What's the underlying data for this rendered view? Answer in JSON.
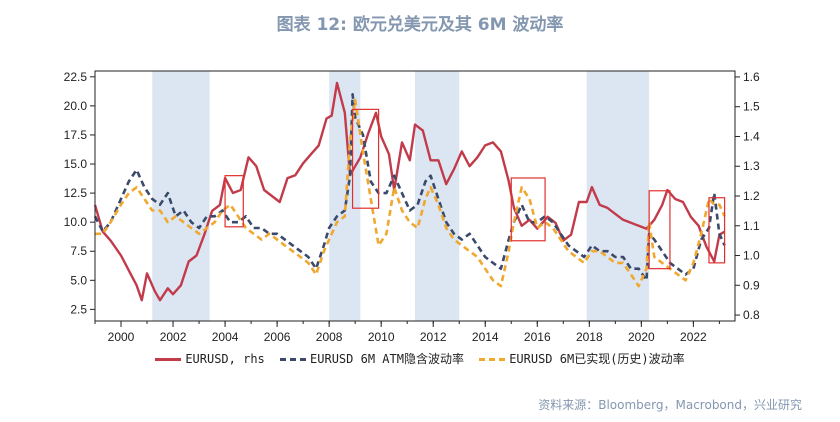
{
  "title": "图表 12: 欧元兑美元及其 6M 波动率",
  "source": "资料来源：Bloomberg，Macrobond，兴业研究",
  "colors": {
    "rate": "#c23b4b",
    "atm": "#3b4a6b",
    "realized": "#f0a830",
    "shade": "#dce6f2",
    "box": "#e0302e"
  },
  "chart_data": {
    "type": "line",
    "title": "图表 12: 欧元兑美元及其 6M 波动率",
    "x_range": [
      1999,
      2023.6
    ],
    "x_ticks": [
      "2000",
      "2002",
      "2004",
      "2006",
      "2008",
      "2010",
      "2012",
      "2014",
      "2016",
      "2018",
      "2020",
      "2022"
    ],
    "y_left_range": [
      1.5,
      23
    ],
    "y_left_ticks": [
      "2.5",
      "5.0",
      "7.5",
      "10.0",
      "12.5",
      "15.0",
      "17.5",
      "20.0",
      "22.5"
    ],
    "y_right_range": [
      0.78,
      1.62
    ],
    "y_right_ticks": [
      "0.8",
      "0.9",
      "1.0",
      "1.1",
      "1.2",
      "1.3",
      "1.4",
      "1.5",
      "1.6"
    ],
    "shaded_periods": [
      [
        2001.2,
        2003.4
      ],
      [
        2008.0,
        2009.2
      ],
      [
        2011.3,
        2013.0
      ],
      [
        2017.9,
        2020.3
      ]
    ],
    "highlight_boxes": [
      {
        "x": [
          2004.0,
          2004.7
        ],
        "y": [
          9.6,
          14.0
        ]
      },
      {
        "x": [
          2008.9,
          2009.9
        ],
        "y": [
          11.2,
          19.7
        ]
      },
      {
        "x": [
          2015.0,
          2016.3
        ],
        "y": [
          8.4,
          13.8
        ]
      },
      {
        "x": [
          2020.3,
          2021.1
        ],
        "y": [
          6.0,
          12.7
        ]
      },
      {
        "x": [
          2022.6,
          2023.2
        ],
        "y": [
          6.5,
          12.1
        ]
      }
    ],
    "series": [
      {
        "name": "EURUSD, rhs",
        "axis": "right",
        "x": [
          1999.0,
          1999.3,
          1999.6,
          2000.0,
          2000.3,
          2000.6,
          2000.8,
          2001.0,
          2001.3,
          2001.5,
          2001.8,
          2002.0,
          2002.3,
          2002.6,
          2002.9,
          2003.2,
          2003.5,
          2003.8,
          2004.0,
          2004.3,
          2004.6,
          2004.9,
          2005.2,
          2005.5,
          2005.8,
          2006.1,
          2006.4,
          2006.7,
          2007.0,
          2007.3,
          2007.6,
          2007.9,
          2008.1,
          2008.3,
          2008.6,
          2008.8,
          2009.0,
          2009.2,
          2009.5,
          2009.8,
          2010.0,
          2010.3,
          2010.5,
          2010.8,
          2011.1,
          2011.3,
          2011.6,
          2011.9,
          2012.2,
          2012.5,
          2012.8,
          2013.1,
          2013.4,
          2013.7,
          2014.0,
          2014.3,
          2014.6,
          2014.9,
          2015.1,
          2015.4,
          2015.7,
          2016.0,
          2016.4,
          2016.7,
          2017.0,
          2017.3,
          2017.6,
          2017.9,
          2018.1,
          2018.4,
          2018.7,
          2019.0,
          2019.3,
          2019.6,
          2019.9,
          2020.2,
          2020.5,
          2020.8,
          2021.0,
          2021.3,
          2021.6,
          2021.9,
          2022.2,
          2022.5,
          2022.8,
          2023.0,
          2023.2
        ],
        "values": [
          1.17,
          1.08,
          1.05,
          1.0,
          0.95,
          0.9,
          0.85,
          0.94,
          0.88,
          0.85,
          0.89,
          0.87,
          0.9,
          0.98,
          1.0,
          1.07,
          1.15,
          1.17,
          1.26,
          1.21,
          1.22,
          1.33,
          1.3,
          1.22,
          1.2,
          1.18,
          1.26,
          1.27,
          1.31,
          1.34,
          1.37,
          1.46,
          1.47,
          1.58,
          1.48,
          1.27,
          1.3,
          1.33,
          1.41,
          1.48,
          1.4,
          1.34,
          1.22,
          1.38,
          1.32,
          1.44,
          1.42,
          1.32,
          1.32,
          1.24,
          1.29,
          1.35,
          1.3,
          1.33,
          1.37,
          1.38,
          1.35,
          1.25,
          1.16,
          1.1,
          1.12,
          1.09,
          1.13,
          1.11,
          1.05,
          1.07,
          1.18,
          1.18,
          1.23,
          1.17,
          1.16,
          1.14,
          1.12,
          1.11,
          1.1,
          1.09,
          1.12,
          1.17,
          1.22,
          1.19,
          1.18,
          1.13,
          1.1,
          1.03,
          0.98,
          1.07,
          1.08
        ]
      },
      {
        "name": "EURUSD 6M ATM隐含波动率",
        "axis": "left",
        "x": [
          1999.0,
          1999.3,
          1999.6,
          2000.0,
          2000.3,
          2000.6,
          2000.9,
          2001.2,
          2001.5,
          2001.8,
          2002.1,
          2002.4,
          2002.7,
          2003.0,
          2003.3,
          2003.6,
          2003.9,
          2004.2,
          2004.5,
          2004.8,
          2005.1,
          2005.4,
          2005.7,
          2006.0,
          2006.3,
          2006.6,
          2006.9,
          2007.2,
          2007.5,
          2007.8,
          2008.0,
          2008.3,
          2008.6,
          2008.8,
          2008.9,
          2009.0,
          2009.3,
          2009.6,
          2009.9,
          2010.2,
          2010.5,
          2010.8,
          2011.1,
          2011.4,
          2011.7,
          2011.9,
          2012.2,
          2012.5,
          2012.8,
          2013.1,
          2013.4,
          2013.7,
          2014.0,
          2014.3,
          2014.6,
          2014.9,
          2015.1,
          2015.4,
          2015.7,
          2016.0,
          2016.3,
          2016.6,
          2016.9,
          2017.2,
          2017.5,
          2017.8,
          2018.1,
          2018.4,
          2018.7,
          2019.0,
          2019.3,
          2019.6,
          2019.9,
          2020.2,
          2020.3,
          2020.5,
          2020.8,
          2021.1,
          2021.4,
          2021.7,
          2022.0,
          2022.3,
          2022.6,
          2022.8,
          2023.0,
          2023.2
        ],
        "values": [
          10.5,
          9.2,
          10.0,
          12.0,
          13.5,
          14.5,
          13.0,
          12.0,
          11.5,
          12.5,
          10.5,
          11.0,
          10.0,
          9.5,
          10.5,
          10.5,
          11.0,
          10.0,
          10.0,
          10.5,
          9.5,
          9.5,
          9.0,
          9.0,
          8.5,
          8.0,
          7.5,
          7.0,
          6.0,
          8.0,
          9.5,
          10.5,
          11.0,
          14.0,
          21.0,
          19.0,
          17.5,
          13.5,
          12.5,
          12.5,
          14.0,
          12.5,
          11.0,
          11.5,
          13.5,
          14.0,
          12.0,
          10.0,
          9.0,
          8.5,
          9.0,
          8.0,
          7.0,
          6.5,
          6.0,
          8.5,
          10.0,
          11.5,
          10.0,
          10.0,
          10.5,
          10.0,
          9.0,
          8.0,
          7.5,
          7.0,
          8.0,
          7.5,
          7.5,
          7.0,
          7.0,
          6.0,
          6.0,
          5.0,
          9.0,
          8.5,
          7.5,
          6.5,
          6.0,
          5.5,
          6.0,
          8.5,
          9.5,
          12.5,
          9.0,
          8.0
        ]
      },
      {
        "name": "EURUSD 6M已实现(历史)波动率",
        "axis": "left",
        "x": [
          1999.0,
          1999.3,
          1999.6,
          2000.0,
          2000.3,
          2000.6,
          2000.9,
          2001.2,
          2001.5,
          2001.8,
          2002.1,
          2002.4,
          2002.7,
          2003.0,
          2003.3,
          2003.6,
          2003.9,
          2004.2,
          2004.5,
          2004.8,
          2005.1,
          2005.4,
          2005.7,
          2006.0,
          2006.3,
          2006.6,
          2006.9,
          2007.2,
          2007.5,
          2007.8,
          2008.0,
          2008.3,
          2008.6,
          2008.8,
          2009.0,
          2009.3,
          2009.6,
          2009.9,
          2010.2,
          2010.5,
          2010.8,
          2011.1,
          2011.4,
          2011.7,
          2011.9,
          2012.2,
          2012.5,
          2012.8,
          2013.1,
          2013.4,
          2013.7,
          2014.0,
          2014.3,
          2014.6,
          2014.9,
          2015.1,
          2015.4,
          2015.7,
          2016.0,
          2016.3,
          2016.6,
          2016.9,
          2017.2,
          2017.5,
          2017.8,
          2018.1,
          2018.4,
          2018.7,
          2019.0,
          2019.3,
          2019.6,
          2019.9,
          2020.2,
          2020.3,
          2020.5,
          2020.8,
          2021.1,
          2021.4,
          2021.7,
          2022.0,
          2022.3,
          2022.6,
          2022.8,
          2023.0,
          2023.2
        ],
        "values": [
          9.0,
          9.0,
          10.0,
          11.5,
          12.5,
          13.0,
          12.0,
          11.0,
          11.0,
          10.0,
          10.5,
          10.0,
          9.5,
          9.0,
          9.5,
          10.0,
          11.0,
          11.5,
          10.5,
          9.5,
          9.0,
          8.5,
          9.0,
          8.5,
          8.0,
          7.5,
          7.0,
          6.5,
          5.5,
          7.5,
          8.5,
          10.0,
          10.5,
          17.0,
          20.5,
          16.0,
          12.0,
          8.0,
          9.0,
          13.0,
          11.0,
          10.0,
          9.5,
          12.0,
          13.0,
          11.5,
          9.5,
          8.5,
          8.0,
          7.5,
          7.0,
          6.0,
          5.0,
          4.5,
          7.5,
          10.0,
          13.0,
          12.0,
          9.5,
          10.0,
          9.5,
          8.5,
          7.5,
          7.0,
          6.5,
          7.5,
          7.5,
          7.0,
          6.5,
          6.5,
          5.5,
          4.5,
          6.0,
          10.0,
          7.0,
          6.5,
          6.0,
          5.5,
          5.0,
          6.5,
          9.0,
          12.0,
          11.5,
          11.5,
          10.5
        ]
      }
    ],
    "legend_position": "bottom",
    "grid": false
  }
}
